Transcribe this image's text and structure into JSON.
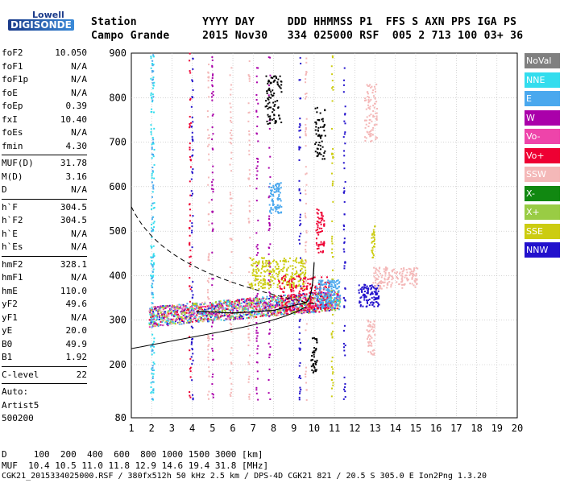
{
  "logo": {
    "line1": "Lowell",
    "line2": "DIGISONDE"
  },
  "header": {
    "labels": "Station          YYYY DAY     DDD HHMMSS P1  FFS S AXN PPS IGA PS",
    "values": "Campo Grande     2015 Nov30   334 025000 RSF  005 2 713 100 03+ 36"
  },
  "params": [
    {
      "k": "foF2",
      "v": "10.050"
    },
    {
      "k": "foF1",
      "v": "N/A"
    },
    {
      "k": "foF1p",
      "v": "N/A"
    },
    {
      "k": "foE",
      "v": "N/A"
    },
    {
      "k": "foEp",
      "v": "0.39"
    },
    {
      "k": "fxI",
      "v": "10.40"
    },
    {
      "k": "foEs",
      "v": "N/A"
    },
    {
      "k": "fmin",
      "v": "4.30"
    },
    {
      "sep": true
    },
    {
      "k": "MUF(D)",
      "v": "31.78"
    },
    {
      "k": "M(D)",
      "v": "3.16"
    },
    {
      "k": "D",
      "v": "N/A"
    },
    {
      "sep": true
    },
    {
      "k": "h`F",
      "v": "304.5"
    },
    {
      "k": "h`F2",
      "v": "304.5"
    },
    {
      "k": "h`E",
      "v": "N/A"
    },
    {
      "k": "h`Es",
      "v": "N/A"
    },
    {
      "sep": true
    },
    {
      "k": "hmF2",
      "v": "328.1"
    },
    {
      "k": "hmF1",
      "v": "N/A"
    },
    {
      "k": "hmE",
      "v": "110.0"
    },
    {
      "k": "yF2",
      "v": "49.6"
    },
    {
      "k": "yF1",
      "v": "N/A"
    },
    {
      "k": "yE",
      "v": "20.0"
    },
    {
      "k": "B0",
      "v": "49.9"
    },
    {
      "k": "B1",
      "v": "1.92"
    },
    {
      "sep": true
    },
    {
      "k": "C-level",
      "v": "22"
    },
    {
      "sep": true
    },
    {
      "k": "Auto:",
      "v": ""
    },
    {
      "k": "Artist5",
      "v": ""
    },
    {
      "k": "500200",
      "v": ""
    }
  ],
  "legend": [
    {
      "label": "NoVal",
      "color": "#808080"
    },
    {
      "label": "NNE",
      "color": "#33ddee"
    },
    {
      "label": "E",
      "color": "#4aa8ee"
    },
    {
      "label": "W",
      "color": "#aa00aa"
    },
    {
      "label": "Vo-",
      "color": "#ee44aa"
    },
    {
      "label": "Vo+",
      "color": "#ee0033"
    },
    {
      "label": "SSW",
      "color": "#f4b8b8"
    },
    {
      "label": "X-",
      "color": "#118811"
    },
    {
      "label": "X+",
      "color": "#99cc44"
    },
    {
      "label": "SSE",
      "color": "#cccc11"
    },
    {
      "label": "NNW",
      "color": "#2211cc"
    }
  ],
  "axes": {
    "x_ticks": [
      "1",
      "2",
      "3",
      "4",
      "5",
      "6",
      "7",
      "8",
      "9",
      "10",
      "11",
      "12",
      "13",
      "14",
      "15",
      "16",
      "17",
      "18",
      "19",
      "20"
    ],
    "y_ticks": [
      "900",
      "800",
      "700",
      "600",
      "500",
      "400",
      "300",
      "200",
      "80"
    ]
  },
  "footer": {
    "line1": "D     100  200  400  600  800 1000 1500 3000 [km]",
    "line2": "MUF  10.4 10.5 11.0 11.8 12.9 14.6 19.4 31.8 [MHz]",
    "line3": "CGK21_2015334025000.RSF / 380fx512h 50 kHz 2.5 km / DPS-4D CGK21 821 / 20.5 S 305.0 E Ion2Png 1.3.20"
  }
}
